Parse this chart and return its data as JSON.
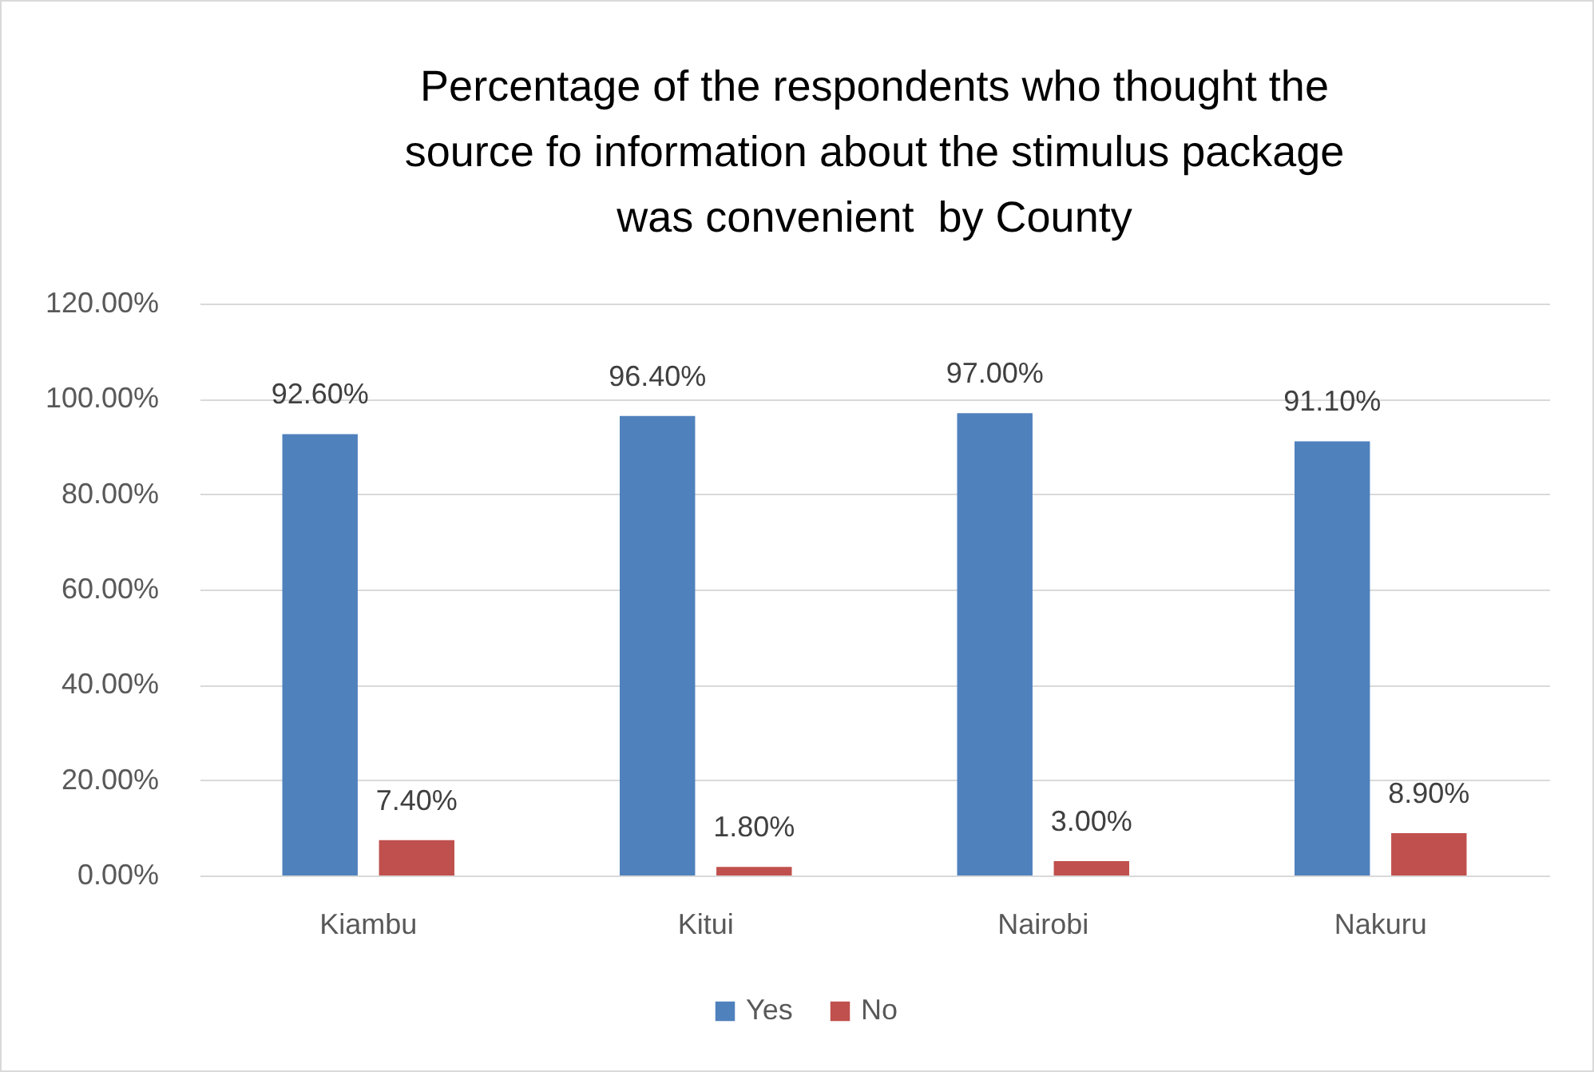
{
  "chart_data": {
    "type": "bar",
    "title": "Percentage of the respondents who thought the source fo information about the stimulus package was convenient  by County",
    "categories": [
      "Kiambu",
      "Kitui",
      "Nairobi",
      "Nakuru"
    ],
    "series": [
      {
        "name": "Yes",
        "color": "#4f81bd",
        "values": [
          92.6,
          96.4,
          97.0,
          91.1
        ],
        "value_labels": [
          "92.60%",
          "96.40%",
          "97.00%",
          "91.10%"
        ]
      },
      {
        "name": "No",
        "color": "#c0504d",
        "values": [
          7.4,
          1.8,
          3.0,
          8.9
        ],
        "value_labels": [
          "7.40%",
          "1.80%",
          "3.00%",
          "8.90%"
        ]
      }
    ],
    "ylim": [
      0,
      120
    ],
    "yticks": [
      {
        "value": 0,
        "label": "0.00%"
      },
      {
        "value": 20,
        "label": "20.00%"
      },
      {
        "value": 40,
        "label": "40.00%"
      },
      {
        "value": 60,
        "label": "60.00%"
      },
      {
        "value": 80,
        "label": "80.00%"
      },
      {
        "value": 100,
        "label": "100.00%"
      },
      {
        "value": 120,
        "label": "120.00%"
      }
    ],
    "grid": "y",
    "legend": "bottom"
  }
}
